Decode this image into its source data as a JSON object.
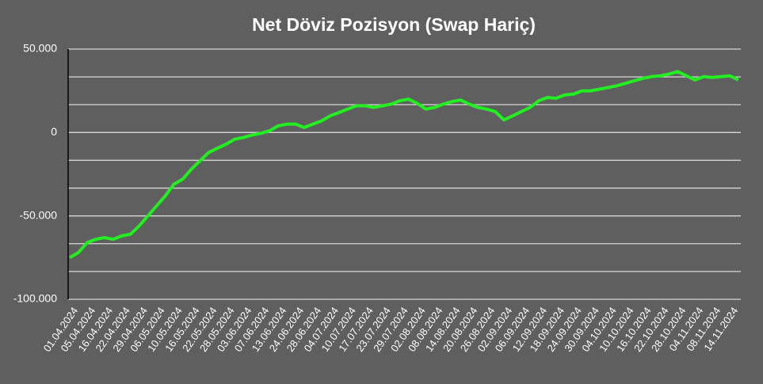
{
  "chart_data": {
    "type": "line",
    "title": "Net Döviz Pozisyon (Swap Hariç)",
    "categories": [
      "01.04.2024",
      null,
      "05.04.2024",
      null,
      "16.04.2024",
      null,
      "22.04.2024",
      null,
      "29.04.2024",
      null,
      "06.05.2024",
      null,
      "10.05.2024",
      null,
      "16.05.2024",
      null,
      "22.05.2024",
      null,
      "28.05.2024",
      null,
      "03.06.2024",
      null,
      "07.06.2024",
      null,
      "13.06.2024",
      null,
      "24.06.2024",
      null,
      "28.06.2024",
      null,
      "04.07.2024",
      null,
      "10.07.2024",
      null,
      "17.07.2024",
      null,
      "23.07.2024",
      null,
      "29.07.2024",
      null,
      "02.08.2024",
      null,
      "08.08.2024",
      null,
      "14.08.2024",
      null,
      "20.08.2024",
      null,
      "26.08.2024",
      null,
      "02.09.2024",
      null,
      "06.09.2024",
      null,
      "12.09.2024",
      null,
      "18.09.2024",
      null,
      "24.09.2024",
      null,
      "30.09.2024",
      null,
      "04.10.2024",
      null,
      "10.10.2024",
      null,
      "16.10.2024",
      null,
      "22.10.2024",
      null,
      "28.10.2024",
      null,
      "04.11.2024",
      null,
      "08.11.2024",
      null,
      "14.11.2024",
      null
    ],
    "series": [
      {
        "color": "#22ee22",
        "values": [
          -75000,
          -72000,
          -66000,
          -64000,
          -63000,
          -64000,
          -62000,
          -61000,
          -56000,
          -50000,
          -44000,
          -38000,
          -31000,
          -28000,
          -22000,
          -17000,
          -12000,
          -9500,
          -7000,
          -4000,
          -3000,
          -1500,
          -500,
          1000,
          4000,
          5000,
          5000,
          3000,
          5000,
          7000,
          10000,
          12000,
          14000,
          16000,
          16000,
          15000,
          16000,
          17000,
          19000,
          20000,
          17500,
          14000,
          15000,
          17000,
          18500,
          19500,
          17000,
          15000,
          14000,
          12500,
          7500,
          10000,
          12500,
          15000,
          19000,
          21000,
          20500,
          22500,
          23000,
          25000,
          25000,
          26000,
          27000,
          28000,
          29500,
          31000,
          32500,
          33500,
          34000,
          35000,
          36500,
          34000,
          31500,
          33500,
          33000,
          33500,
          34000,
          31500
        ]
      }
    ],
    "ylim": [
      -100000,
      50000
    ],
    "yticks": [
      {
        "value": 50000,
        "label": "50.000"
      },
      0,
      {
        "value": -50000,
        "label": "-50.000"
      },
      {
        "value": -100000,
        "label": "-100.000"
      }
    ],
    "ygrid": [
      33333.33,
      16666.67,
      -16666.67,
      -33333.33,
      -66666.67,
      -83333.33
    ],
    "grid": true
  }
}
